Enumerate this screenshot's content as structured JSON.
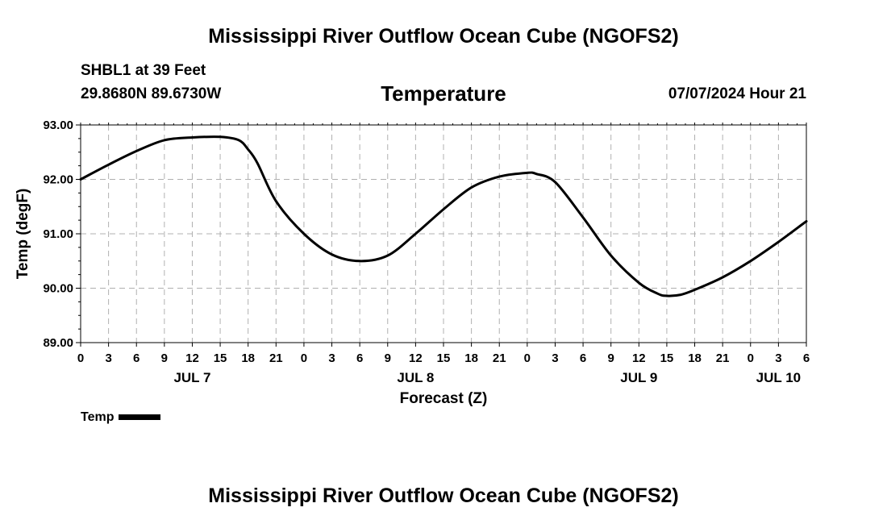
{
  "header": {
    "title": "Mississippi River Outflow Ocean Cube (NGOFS2)",
    "station": "SHBL1 at 39 Feet",
    "coords": "29.8680N  89.6730W",
    "variable": "Temperature",
    "datetime": "07/07/2024 Hour 21"
  },
  "footer": {
    "title": "Mississippi River Outflow Ocean Cube (NGOFS2)"
  },
  "chart_data": {
    "type": "line",
    "title": "Temperature",
    "xlabel": "Forecast (Z)",
    "ylabel": "Temp (degF)",
    "xlim": [
      0,
      78
    ],
    "ylim": [
      89.0,
      93.0
    ],
    "grid": true,
    "yticks": [
      "89.00",
      "90.00",
      "91.00",
      "92.00",
      "93.00"
    ],
    "xticks": [
      "0",
      "3",
      "6",
      "9",
      "12",
      "15",
      "18",
      "21",
      "0",
      "3",
      "6",
      "9",
      "12",
      "15",
      "18",
      "21",
      "0",
      "3",
      "6",
      "9",
      "12",
      "15",
      "18",
      "21",
      "0",
      "3",
      "6"
    ],
    "day_labels": [
      {
        "label": "JUL 7",
        "hour": 12
      },
      {
        "label": "JUL 8",
        "hour": 36
      },
      {
        "label": "JUL 9",
        "hour": 60
      },
      {
        "label": "JUL 10",
        "hour": 75
      }
    ],
    "series": [
      {
        "name": "Temp",
        "x": [
          0,
          3,
          6,
          9,
          12,
          15,
          17,
          18,
          19,
          21,
          24,
          27,
          30,
          33,
          36,
          39,
          42,
          45,
          48,
          49,
          51,
          54,
          57,
          60,
          62,
          63,
          64.5,
          66,
          69,
          72,
          75,
          78
        ],
        "values": [
          92.0,
          92.27,
          92.52,
          92.72,
          92.77,
          92.78,
          92.72,
          92.55,
          92.3,
          91.6,
          91.0,
          90.62,
          90.5,
          90.6,
          91.0,
          91.45,
          91.85,
          92.05,
          92.12,
          92.1,
          91.95,
          91.3,
          90.6,
          90.1,
          89.9,
          89.86,
          89.88,
          89.97,
          90.2,
          90.5,
          90.85,
          91.23
        ]
      }
    ]
  },
  "legend": {
    "label": "Temp"
  }
}
